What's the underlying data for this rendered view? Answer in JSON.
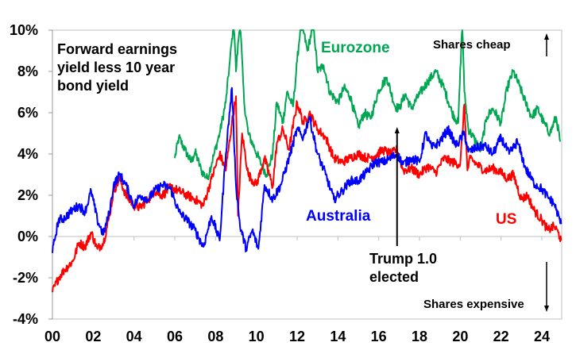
{
  "chart_data": {
    "type": "line",
    "title": "Forward earnings yield less 10 year bond yield",
    "title_lines": [
      "Forward earnings",
      "yield less 10 year",
      "bond yield"
    ],
    "xlabel": "",
    "ylabel": "",
    "xlim": [
      2000,
      2025
    ],
    "ylim": [
      -4,
      10
    ],
    "x_ticks": [
      2000,
      2002,
      2004,
      2006,
      2008,
      2010,
      2012,
      2014,
      2016,
      2018,
      2020,
      2022,
      2024
    ],
    "x_tick_labels": [
      "00",
      "02",
      "04",
      "06",
      "08",
      "10",
      "12",
      "14",
      "16",
      "18",
      "20",
      "22",
      "24"
    ],
    "y_ticks": [
      -4,
      -2,
      0,
      2,
      4,
      6,
      8,
      10
    ],
    "y_tick_labels": [
      "-4%",
      "-2%",
      "0%",
      "2%",
      "4%",
      "6%",
      "8%",
      "10%"
    ],
    "grid": false,
    "series": [
      {
        "name": "Eurozone",
        "color": "#00A651",
        "x": [
          2006.0,
          2006.2,
          2006.5,
          2006.8,
          2007.0,
          2007.3,
          2007.6,
          2007.9,
          2008.2,
          2008.5,
          2008.7,
          2008.9,
          2009.0,
          2009.2,
          2009.4,
          2009.6,
          2009.9,
          2010.2,
          2010.5,
          2010.8,
          2011.0,
          2011.3,
          2011.5,
          2011.8,
          2012.0,
          2012.2,
          2012.5,
          2012.8,
          2013.0,
          2013.3,
          2013.6,
          2014.0,
          2014.3,
          2014.6,
          2015.0,
          2015.3,
          2015.6,
          2016.0,
          2016.4,
          2016.8,
          2017.0,
          2017.3,
          2017.6,
          2018.0,
          2018.4,
          2018.8,
          2019.2,
          2019.6,
          2019.9,
          2020.1,
          2020.2,
          2020.4,
          2020.7,
          2021.0,
          2021.3,
          2021.6,
          2022.0,
          2022.3,
          2022.6,
          2022.9,
          2023.2,
          2023.5,
          2023.8,
          2024.1,
          2024.4,
          2024.7,
          2024.9
        ],
        "values": [
          3.8,
          4.8,
          4.2,
          3.6,
          4.1,
          3.2,
          2.8,
          3.9,
          5.0,
          6.5,
          8.5,
          10.5,
          8.0,
          10.5,
          6.5,
          5.0,
          4.3,
          3.6,
          3.0,
          4.0,
          6.5,
          5.5,
          7.0,
          6.3,
          8.5,
          10.5,
          9.0,
          10.3,
          8.0,
          8.3,
          7.0,
          6.5,
          7.2,
          6.8,
          5.3,
          6.0,
          5.7,
          7.1,
          7.7,
          6.3,
          6.2,
          6.9,
          6.2,
          6.9,
          7.5,
          8.0,
          7.2,
          6.0,
          5.5,
          10.5,
          7.0,
          5.2,
          4.7,
          4.2,
          5.8,
          6.2,
          5.5,
          7.2,
          8.0,
          7.3,
          6.5,
          5.8,
          6.2,
          5.5,
          5.0,
          5.8,
          4.6
        ]
      },
      {
        "name": "US",
        "color": "#FF0000",
        "x": [
          2000.0,
          2000.3,
          2000.6,
          2001.0,
          2001.3,
          2001.6,
          2001.9,
          2002.2,
          2002.5,
          2002.8,
          2003.0,
          2003.3,
          2003.6,
          2004.0,
          2004.3,
          2004.7,
          2005.0,
          2005.4,
          2005.8,
          2006.2,
          2006.6,
          2007.0,
          2007.4,
          2007.8,
          2008.2,
          2008.5,
          2008.8,
          2009.0,
          2009.1,
          2009.3,
          2009.6,
          2010.0,
          2010.4,
          2010.8,
          2011.0,
          2011.3,
          2011.6,
          2012.0,
          2012.3,
          2012.6,
          2013.0,
          2013.4,
          2013.8,
          2014.2,
          2014.6,
          2015.0,
          2015.4,
          2015.8,
          2016.2,
          2016.6,
          2016.9,
          2017.2,
          2017.6,
          2018.0,
          2018.4,
          2018.8,
          2019.2,
          2019.6,
          2020.0,
          2020.2,
          2020.35,
          2020.5,
          2020.8,
          2021.2,
          2021.6,
          2022.0,
          2022.3,
          2022.6,
          2023.0,
          2023.3,
          2023.6,
          2024.0,
          2024.3,
          2024.6,
          2024.8,
          2024.95
        ],
        "values": [
          -2.7,
          -2.0,
          -1.6,
          -1.2,
          -0.3,
          -0.5,
          0.2,
          -0.6,
          -0.3,
          1.0,
          2.2,
          2.8,
          2.0,
          1.5,
          1.4,
          1.8,
          2.2,
          2.0,
          2.4,
          2.2,
          2.0,
          1.8,
          1.5,
          2.8,
          4.0,
          3.2,
          5.5,
          6.8,
          1.0,
          5.0,
          3.0,
          2.5,
          3.8,
          2.4,
          4.5,
          5.2,
          4.2,
          6.5,
          5.5,
          6.0,
          5.2,
          4.8,
          3.8,
          3.6,
          3.8,
          4.0,
          3.8,
          3.9,
          4.2,
          4.0,
          4.2,
          3.2,
          3.3,
          3.0,
          3.4,
          3.1,
          3.8,
          3.6,
          3.5,
          6.4,
          3.2,
          3.8,
          3.5,
          3.2,
          3.3,
          3.1,
          2.8,
          3.0,
          1.8,
          2.0,
          1.3,
          0.8,
          0.3,
          0.5,
          0.2,
          -0.2
        ]
      },
      {
        "name": "Australia",
        "color": "#0000FF",
        "x": [
          2000.0,
          2000.1,
          2000.3,
          2000.6,
          2001.0,
          2001.3,
          2001.6,
          2001.9,
          2002.2,
          2002.5,
          2002.8,
          2003.0,
          2003.3,
          2003.6,
          2004.0,
          2004.3,
          2004.7,
          2005.0,
          2005.4,
          2005.8,
          2006.2,
          2006.6,
          2007.0,
          2007.4,
          2007.8,
          2008.2,
          2008.5,
          2008.8,
          2009.0,
          2009.2,
          2009.5,
          2009.8,
          2010.1,
          2010.4,
          2010.8,
          2011.2,
          2011.6,
          2012.0,
          2012.3,
          2012.6,
          2013.0,
          2013.4,
          2013.8,
          2014.2,
          2014.6,
          2015.0,
          2015.4,
          2015.8,
          2016.2,
          2016.6,
          2016.9,
          2017.2,
          2017.6,
          2018.0,
          2018.3,
          2018.6,
          2019.0,
          2019.4,
          2019.8,
          2020.2,
          2020.4,
          2020.8,
          2021.2,
          2021.6,
          2022.0,
          2022.4,
          2022.8,
          2023.2,
          2023.6,
          2024.0,
          2024.3,
          2024.6,
          2024.95
        ],
        "values": [
          -0.8,
          -0.2,
          0.8,
          0.9,
          1.3,
          1.5,
          1.2,
          2.2,
          0.8,
          0.1,
          1.2,
          2.5,
          3.0,
          2.5,
          1.5,
          2.0,
          1.8,
          2.2,
          2.5,
          2.3,
          1.2,
          0.8,
          0.3,
          -0.5,
          1.0,
          -0.2,
          4.0,
          7.2,
          2.5,
          0.5,
          -0.6,
          0.3,
          -0.6,
          2.5,
          1.8,
          2.5,
          3.8,
          5.2,
          4.8,
          5.8,
          4.0,
          3.0,
          1.8,
          2.2,
          2.7,
          2.7,
          3.1,
          3.6,
          3.6,
          3.8,
          4.0,
          3.5,
          3.8,
          3.6,
          5.0,
          4.3,
          4.6,
          5.2,
          4.4,
          5.0,
          4.1,
          4.3,
          4.4,
          4.0,
          4.8,
          4.0,
          4.6,
          3.3,
          2.6,
          2.3,
          1.9,
          1.6,
          0.6
        ]
      }
    ],
    "annotations": {
      "eurozone_label": "Eurozone",
      "australia_label": "Australia",
      "us_label": "US",
      "shares_cheap": "Shares cheap",
      "shares_expensive": "Shares expensive",
      "trump_line1": "Trump 1.0",
      "trump_line2": "elected",
      "trump_event_x": 2016.9
    }
  }
}
